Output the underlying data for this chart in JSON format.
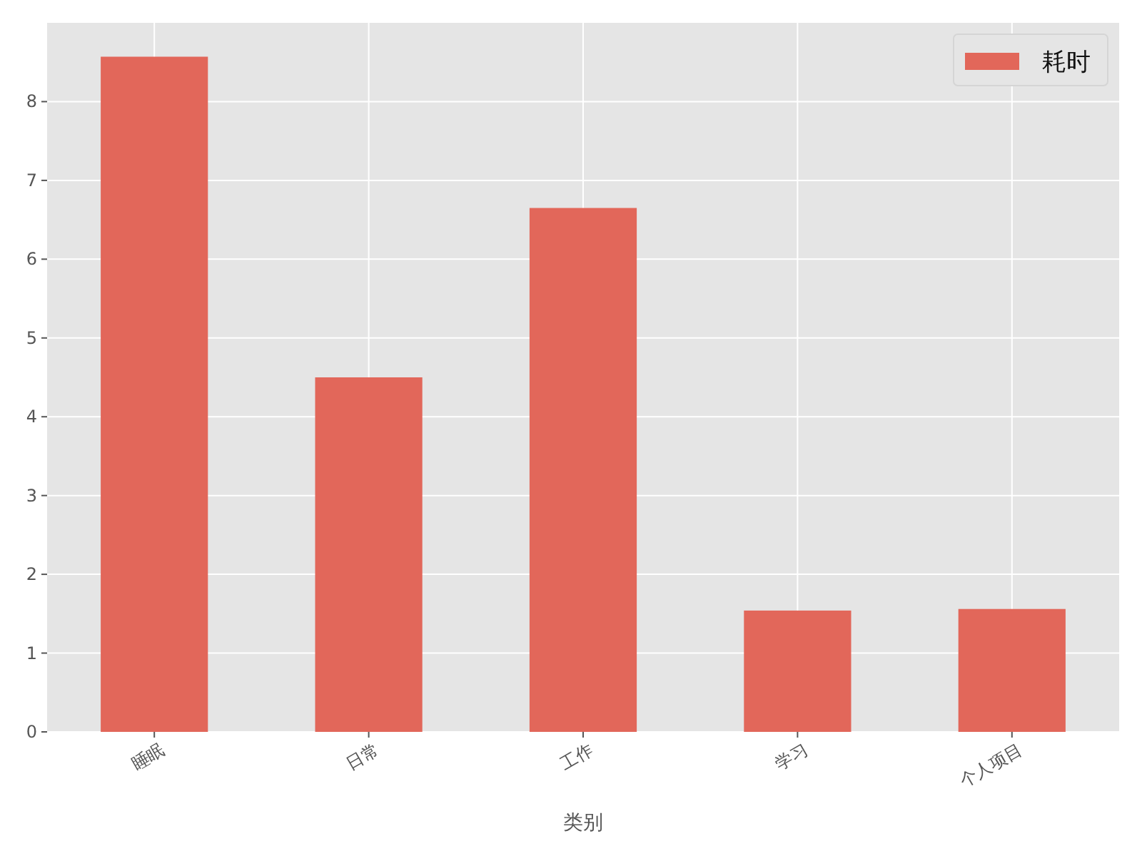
{
  "chart_data": {
    "type": "bar",
    "xlabel": "类别",
    "categories": [
      "睡眠",
      "日常",
      "工作",
      "学习",
      "个人项目"
    ],
    "series": [
      {
        "name": "耗时",
        "color": "#e2675a",
        "values": [
          8.57,
          4.5,
          6.65,
          1.54,
          1.56
        ]
      }
    ],
    "ylim": [
      0,
      9.0
    ],
    "yticks": [
      0,
      1,
      2,
      3,
      4,
      5,
      6,
      7,
      8
    ],
    "grid": true,
    "legend": "top right"
  }
}
